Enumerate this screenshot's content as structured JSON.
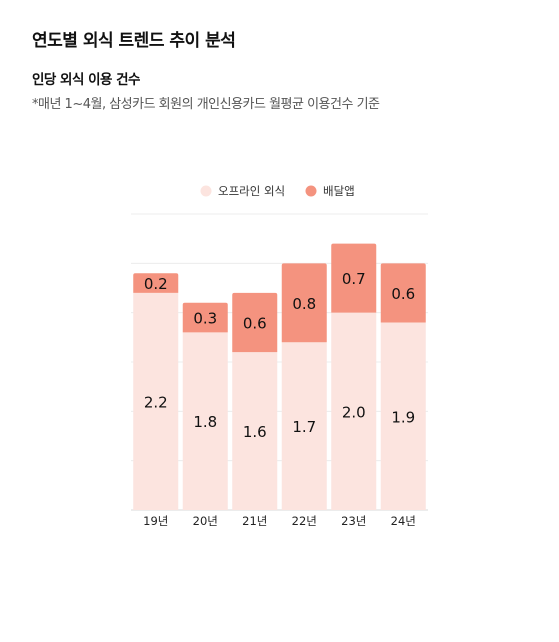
{
  "header": {
    "title": "연도별 외식 트렌드 추이 분석",
    "subtitle": "인당 외식 이용 건수",
    "note": "*매년 1~4월, 삼성카드 회원의 개인신용카드 월평균 이용건수 기준"
  },
  "chart_data": {
    "type": "bar",
    "stacked": true,
    "categories": [
      "19년",
      "20년",
      "21년",
      "22년",
      "23년",
      "24년"
    ],
    "series": [
      {
        "name": "오프라인 외식",
        "values": [
          2.2,
          1.8,
          1.6,
          1.7,
          2.0,
          1.9
        ],
        "labels": [
          "2.2",
          "1.8",
          "1.6",
          "1.7",
          "2.0",
          "1.9"
        ],
        "color": "#fce4df"
      },
      {
        "name": "배달앱",
        "values": [
          0.2,
          0.3,
          0.6,
          0.8,
          0.7,
          0.6
        ],
        "labels": [
          "0.2",
          "0.3",
          "0.6",
          "0.8",
          "0.7",
          "0.6"
        ],
        "color": "#f4937f"
      }
    ],
    "ylim": [
      0,
      3.0
    ],
    "grid": true,
    "legend_position": "top-center"
  }
}
